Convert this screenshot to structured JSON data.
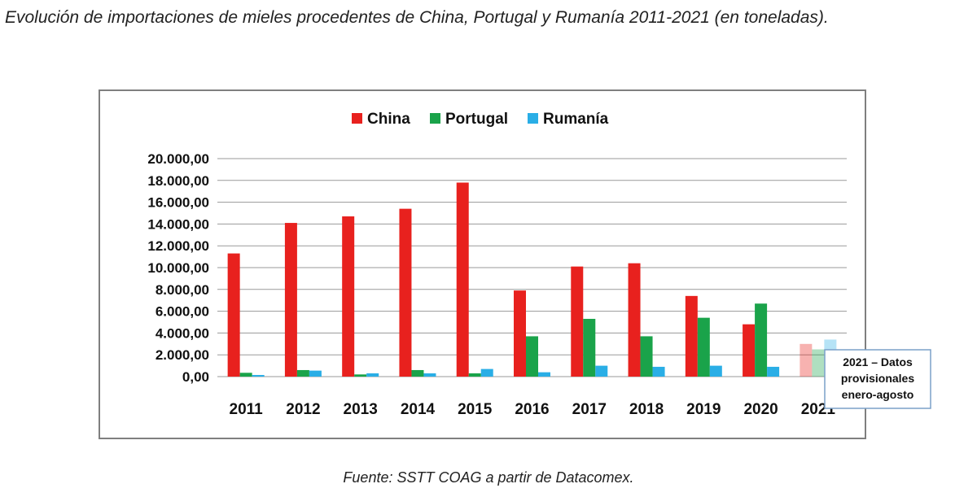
{
  "heading": "Evolución de importaciones de mieles procedentes de China, Portugal y Rumanía 2011-2021 (en toneladas).",
  "source": "Fuente: SSTT COAG a partir de Datacomex.",
  "chart_data": {
    "type": "bar",
    "title": "",
    "xlabel": "",
    "ylabel": "",
    "ylim": [
      0,
      20000
    ],
    "yticks": [
      "20.000,00",
      "18.000,00",
      "16.000,00",
      "14.000,00",
      "12.000,00",
      "10.000,00",
      "8.000,00",
      "6.000,00",
      "4.000,00",
      "2.000,00",
      "0,00"
    ],
    "ytick_values": [
      20000,
      18000,
      16000,
      14000,
      12000,
      10000,
      8000,
      6000,
      4000,
      2000,
      0
    ],
    "grid": true,
    "legend_position": "top",
    "categories": [
      "2011",
      "2012",
      "2013",
      "2014",
      "2015",
      "2016",
      "2017",
      "2018",
      "2019",
      "2020",
      "2021"
    ],
    "series": [
      {
        "name": "China",
        "color": "#e8211e",
        "values": [
          11300,
          14100,
          14700,
          15400,
          17800,
          7900,
          10100,
          10400,
          7400,
          4800,
          3000
        ]
      },
      {
        "name": "Portugal",
        "color": "#1aa34a",
        "values": [
          350,
          600,
          200,
          600,
          300,
          3700,
          5300,
          3700,
          5400,
          6700,
          2500
        ]
      },
      {
        "name": "Rumanía",
        "color": "#2aaee6",
        "values": [
          150,
          550,
          300,
          300,
          700,
          400,
          1000,
          900,
          1000,
          900,
          3400
        ]
      }
    ],
    "faded_category": "2021",
    "annotation": [
      "2021 – Datos",
      "provisionales",
      "enero-agosto"
    ]
  }
}
